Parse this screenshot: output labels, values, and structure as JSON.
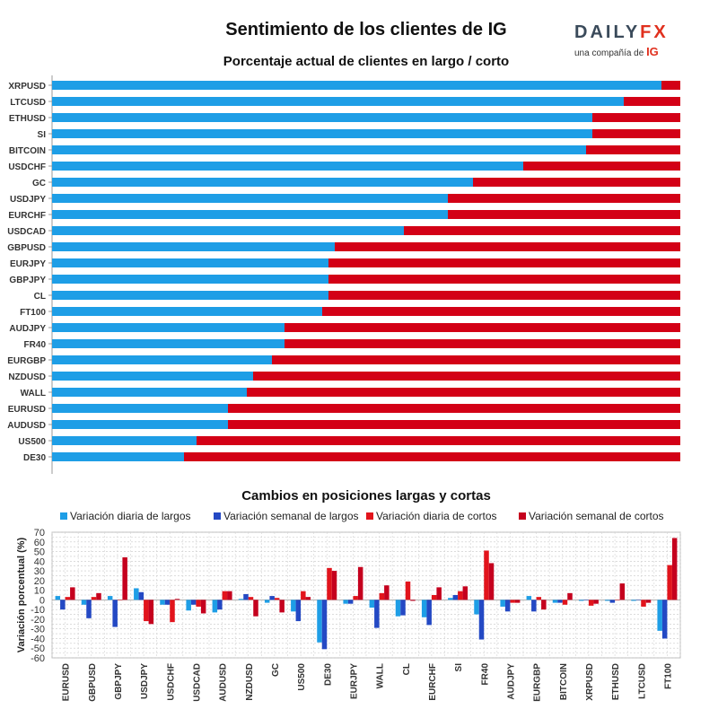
{
  "title": "Sentimiento de los clientes de IG",
  "logo": {
    "brand_left": "DAILY",
    "brand_right": "FX",
    "tagline": "una compañía de",
    "tagline_brand": "IG"
  },
  "colors": {
    "long": "#1e9ee6",
    "short": "#d30016",
    "weekly_long": "#2449c4",
    "weekly_short": "#c5001e"
  },
  "chart_data": [
    {
      "type": "bar",
      "orientation": "horizontal-stacked",
      "title": "Porcentaje actual de clientes en largo / corto",
      "categories": [
        "XRPUSD",
        "LTCUSD",
        "ETHUSD",
        "SI",
        "BITCOIN",
        "USDCHF",
        "GC",
        "USDJPY",
        "EURCHF",
        "USDCAD",
        "GBPUSD",
        "EURJPY",
        "GBPJPY",
        "CL",
        "FT100",
        "AUDJPY",
        "FR40",
        "EURGBP",
        "NZDUSD",
        "WALL",
        "EURUSD",
        "AUDUSD",
        "US500",
        "DE30"
      ],
      "series": [
        {
          "name": "Largos",
          "values": [
            97,
            91,
            86,
            86,
            85,
            75,
            67,
            63,
            63,
            56,
            45,
            44,
            44,
            44,
            43,
            37,
            37,
            35,
            32,
            31,
            28,
            28,
            23,
            21
          ]
        },
        {
          "name": "Cortos",
          "values": [
            3,
            9,
            14,
            14,
            15,
            25,
            33,
            37,
            37,
            44,
            55,
            56,
            56,
            56,
            57,
            63,
            63,
            65,
            68,
            69,
            72,
            72,
            77,
            79
          ]
        }
      ],
      "xlim": [
        0,
        100
      ]
    },
    {
      "type": "bar",
      "orientation": "vertical-grouped",
      "title": "Cambios en posiciones largas y cortas",
      "ylabel": "Variación porcentual (%)",
      "ylim": [
        -60,
        70
      ],
      "yticks": [
        -60,
        -50,
        -40,
        -30,
        -20,
        -10,
        0,
        10,
        20,
        30,
        40,
        50,
        60,
        70
      ],
      "categories": [
        "EURUSD",
        "GBPUSD",
        "GBPJPY",
        "USDJPY",
        "USDCHF",
        "USDCAD",
        "AUDUSD",
        "NZDUSD",
        "GC",
        "US500",
        "DE30",
        "EURJPY",
        "WALL",
        "CL",
        "EURCHF",
        "SI",
        "FR40",
        "AUDJPY",
        "EURGBP",
        "BITCOIN",
        "XRPUSD",
        "ETHUSD",
        "LTCUSD",
        "FT100"
      ],
      "series": [
        {
          "name": "Variación diaria de largos",
          "values": [
            4,
            -5,
            4,
            12,
            -5,
            -11,
            -13,
            1,
            -3,
            -12,
            -44,
            -4,
            -8,
            -17,
            -18,
            2,
            -15,
            -7,
            4,
            -3,
            -1,
            -1,
            -1,
            -32
          ]
        },
        {
          "name": "Variación semanal de largos",
          "values": [
            -10,
            -19,
            -28,
            8,
            -5,
            -5,
            -10,
            6,
            4,
            -22,
            -51,
            -4,
            -29,
            -16,
            -26,
            5,
            -41,
            -12,
            -12,
            -3,
            0,
            -3,
            0,
            -40
          ]
        },
        {
          "name": "Variación diaria de cortos",
          "values": [
            3,
            3,
            0,
            -22,
            -23,
            -7,
            9,
            3,
            2,
            9,
            33,
            4,
            7,
            19,
            5,
            9,
            51,
            -3,
            3,
            -5,
            -6,
            0,
            -7,
            36
          ]
        },
        {
          "name": "Variación semanal de cortos",
          "values": [
            13,
            7,
            44,
            -25,
            1,
            -14,
            9,
            -17,
            -13,
            3,
            30,
            34,
            15,
            -1,
            13,
            14,
            38,
            -3,
            -10,
            7,
            -4,
            17,
            -3,
            64
          ]
        }
      ]
    }
  ]
}
